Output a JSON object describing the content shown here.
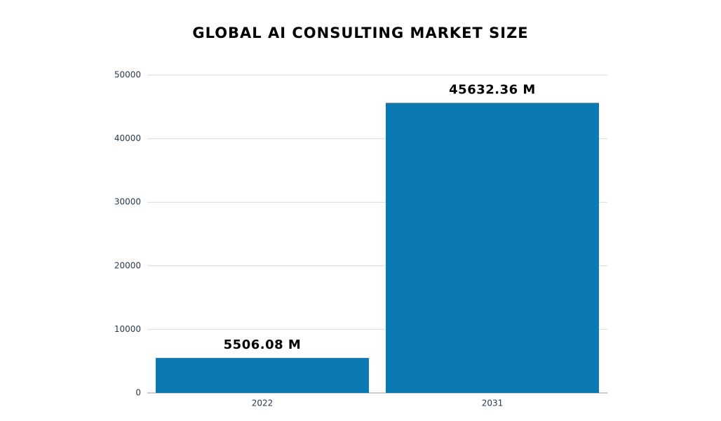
{
  "chart_data": {
    "type": "bar",
    "title": "GLOBAL AI CONSULTING MARKET SIZE",
    "categories": [
      "2022",
      "2031"
    ],
    "values": [
      5506.08,
      45632.36
    ],
    "value_labels": [
      "5506.08 M",
      "45632.36 M"
    ],
    "color": "#0b7ab3",
    "ylim": [
      0,
      50000
    ],
    "yticks": [
      0,
      10000,
      20000,
      30000,
      40000,
      50000
    ],
    "grid": true
  }
}
